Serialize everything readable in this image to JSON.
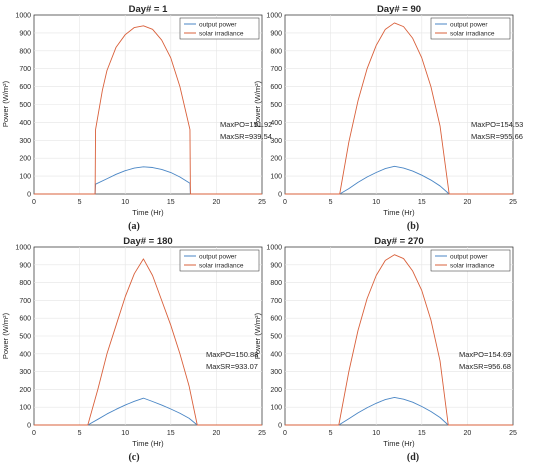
{
  "figure": {
    "panels": [
      {
        "caption": "(a)",
        "title": "Day# = 1",
        "annotation_po": "MaxPO=151.92",
        "annotation_sr": "MaxSR=939.54"
      },
      {
        "caption": "(b)",
        "title": "Day# = 90",
        "annotation_po": "MaxPO=154.53",
        "annotation_sr": "MaxSR=955.66"
      },
      {
        "caption": "(c)",
        "title": "Day# = 180",
        "annotation_po": "MaxPO=150.88",
        "annotation_sr": "MaxSR=933.07"
      },
      {
        "caption": "(d)",
        "title": "Day# = 270",
        "annotation_po": "MaxPO=154.69",
        "annotation_sr": "MaxSR=956.68"
      }
    ],
    "legend": {
      "output": "output power",
      "solar": "solar irradiance"
    },
    "xlabel": "Time (Hr)",
    "ylabel": "Power (W/m²)",
    "colors": {
      "output": "#4a86c5",
      "solar": "#d9603b",
      "grid": "#e5e5e5",
      "axis": "#262626"
    }
  },
  "chart_data": [
    {
      "type": "line",
      "title": "Day# = 1",
      "xlabel": "Time (Hr)",
      "ylabel": "Power (W/m²)",
      "xlim": [
        0,
        25
      ],
      "ylim": [
        0,
        1000
      ],
      "xticks": [
        0,
        5,
        10,
        15,
        20,
        25
      ],
      "yticks": [
        0,
        100,
        200,
        300,
        400,
        500,
        600,
        700,
        800,
        900,
        1000
      ],
      "grid": true,
      "legend_position": "top-right",
      "series": [
        {
          "name": "output power",
          "x": [
            0,
            6.7,
            6.75,
            8,
            9,
            10,
            11,
            12,
            13,
            14,
            15,
            16,
            17.1,
            17.15,
            25
          ],
          "y": [
            0,
            0,
            55,
            85,
            110,
            130,
            145,
            151.92,
            148,
            137,
            120,
            95,
            60,
            0,
            0
          ]
        },
        {
          "name": "solar irradiance",
          "x": [
            0,
            6.7,
            6.75,
            7.5,
            8,
            9,
            10,
            11,
            12,
            13,
            14,
            15,
            16,
            17.1,
            17.15,
            25
          ],
          "y": [
            0,
            0,
            360,
            580,
            690,
            820,
            890,
            930,
            939.54,
            920,
            860,
            760,
            600,
            360,
            0,
            0
          ]
        }
      ],
      "annotations": [
        "MaxPO=151.92",
        "MaxSR=939.54"
      ]
    },
    {
      "type": "line",
      "title": "Day# = 90",
      "xlabel": "Time (Hr)",
      "ylabel": "Power (W/m²)",
      "xlim": [
        0,
        25
      ],
      "ylim": [
        0,
        1000
      ],
      "xticks": [
        0,
        5,
        10,
        15,
        20,
        25
      ],
      "yticks": [
        0,
        100,
        200,
        300,
        400,
        500,
        600,
        700,
        800,
        900,
        1000
      ],
      "grid": true,
      "legend_position": "top-right",
      "series": [
        {
          "name": "output power",
          "x": [
            0,
            6,
            7,
            8,
            9,
            10,
            11,
            12,
            13,
            14,
            15,
            16,
            17,
            18,
            25
          ],
          "y": [
            0,
            0,
            30,
            65,
            95,
            120,
            142,
            154.53,
            145,
            128,
            105,
            78,
            45,
            0,
            0
          ]
        },
        {
          "name": "solar irradiance",
          "x": [
            0,
            6,
            7,
            8,
            9,
            10,
            11,
            12,
            13,
            14,
            15,
            16,
            17,
            18,
            25
          ],
          "y": [
            0,
            0,
            290,
            520,
            700,
            830,
            920,
            955.66,
            935,
            870,
            760,
            600,
            380,
            0,
            0
          ]
        }
      ],
      "annotations": [
        "MaxPO=154.53",
        "MaxSR=955.66"
      ]
    },
    {
      "type": "line",
      "title": "Day# = 180",
      "xlabel": "Time (Hr)",
      "ylabel": "Power (W/m²)",
      "xlim": [
        0,
        25
      ],
      "ylim": [
        0,
        1000
      ],
      "xticks": [
        0,
        5,
        10,
        15,
        20,
        25
      ],
      "yticks": [
        0,
        100,
        200,
        300,
        400,
        500,
        600,
        700,
        800,
        900,
        1000
      ],
      "grid": true,
      "legend_position": "top-right",
      "series": [
        {
          "name": "output power",
          "x": [
            0,
            5.9,
            7,
            8,
            9,
            10,
            11,
            12,
            13,
            14,
            15,
            16,
            17,
            17.9,
            25
          ],
          "y": [
            0,
            0,
            32,
            62,
            88,
            112,
            133,
            150.88,
            132,
            112,
            90,
            66,
            38,
            0,
            0
          ]
        },
        {
          "name": "solar irradiance",
          "x": [
            0,
            5.9,
            7,
            8,
            9,
            10,
            11,
            12,
            13,
            14,
            15,
            16,
            17,
            17.9,
            25
          ],
          "y": [
            0,
            0,
            200,
            400,
            560,
            720,
            850,
            933.07,
            840,
            700,
            560,
            400,
            220,
            0,
            0
          ]
        }
      ],
      "annotations": [
        "MaxPO=150.88",
        "MaxSR=933.07"
      ]
    },
    {
      "type": "line",
      "title": "Day# = 270",
      "xlabel": "Time (Hr)",
      "ylabel": "Power (W/m²)",
      "xlim": [
        0,
        25
      ],
      "ylim": [
        0,
        1000
      ],
      "xticks": [
        0,
        5,
        10,
        15,
        20,
        25
      ],
      "yticks": [
        0,
        100,
        200,
        300,
        400,
        500,
        600,
        700,
        800,
        900,
        1000
      ],
      "grid": true,
      "legend_position": "top-right",
      "series": [
        {
          "name": "output power",
          "x": [
            0,
            5.9,
            7,
            8,
            9,
            10,
            11,
            12,
            13,
            14,
            15,
            16,
            17,
            17.9,
            25
          ],
          "y": [
            0,
            0,
            35,
            68,
            97,
            122,
            143,
            154.69,
            145,
            128,
            104,
            76,
            42,
            0,
            0
          ]
        },
        {
          "name": "solar irradiance",
          "x": [
            0,
            5.9,
            7,
            8,
            9,
            10,
            11,
            12,
            13,
            14,
            15,
            16,
            17,
            17.9,
            25
          ],
          "y": [
            0,
            0,
            300,
            530,
            710,
            840,
            925,
            956.68,
            935,
            865,
            755,
            590,
            360,
            0,
            0
          ]
        }
      ],
      "annotations": [
        "MaxPO=154.69",
        "MaxSR=956.68"
      ]
    }
  ]
}
